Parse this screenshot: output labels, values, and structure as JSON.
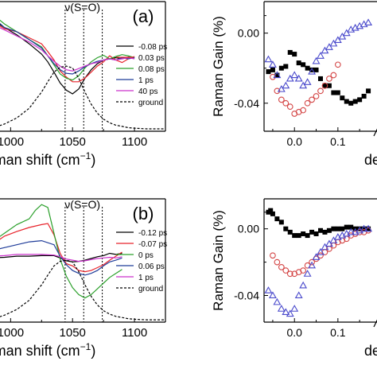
{
  "chart_data": [
    {
      "panel": "top-left",
      "type": "line",
      "panel_label": "(a)",
      "annotation": "ν(S=O)",
      "xlabel": "Raman shift (cm",
      "xlabel_sup": "−1",
      "xlabel_close": ")",
      "xticks": [
        1000,
        1050,
        1100
      ],
      "xtick_labels": [
        "1000",
        "1050",
        "1100"
      ],
      "xlim": [
        985,
        1125
      ],
      "ylim": [
        -1.1,
        1.05
      ],
      "dashed_markers_x": [
        1044,
        1059,
        1074
      ],
      "legend_position": "right-center",
      "series": [
        {
          "name": "-0.08 ps",
          "color": "#000000",
          "dash": false,
          "x": [
            985,
            995,
            1005,
            1015,
            1025,
            1030,
            1035,
            1040,
            1045,
            1050,
            1055,
            1060,
            1065,
            1070,
            1075,
            1080,
            1085,
            1090,
            1095,
            1100
          ],
          "y": [
            0.75,
            0.62,
            0.5,
            0.35,
            0.18,
            0.05,
            -0.12,
            -0.3,
            -0.42,
            -0.48,
            -0.4,
            -0.22,
            -0.08,
            0.02,
            0.08,
            0.1,
            0.12,
            0.1,
            0.13,
            0.12
          ]
        },
        {
          "name": "0.03 ps",
          "color": "#e8232b",
          "dash": false,
          "x": [
            985,
            995,
            1005,
            1015,
            1025,
            1030,
            1035,
            1040,
            1045,
            1050,
            1055,
            1060,
            1065,
            1070,
            1075,
            1080,
            1085,
            1090,
            1095,
            1100
          ],
          "y": [
            0.72,
            0.6,
            0.55,
            0.45,
            0.35,
            0.22,
            0.08,
            -0.1,
            -0.2,
            -0.28,
            -0.28,
            -0.22,
            -0.12,
            -0.02,
            0.05,
            0.15,
            0.08,
            0.04,
            0.1,
            0.14
          ]
        },
        {
          "name": "0.08 ps",
          "color": "#2ca02c",
          "dash": false,
          "x": [
            985,
            995,
            1005,
            1015,
            1025,
            1030,
            1035,
            1040,
            1045,
            1050,
            1055,
            1060,
            1065,
            1070,
            1075,
            1080,
            1085,
            1090,
            1095,
            1100
          ],
          "y": [
            0.85,
            0.68,
            0.55,
            0.42,
            0.3,
            0.15,
            0.0,
            -0.15,
            -0.22,
            -0.25,
            -0.18,
            -0.05,
            0.05,
            0.12,
            0.16,
            0.1,
            0.14,
            0.17,
            0.15,
            0.12
          ]
        },
        {
          "name": "1 ps",
          "color": "#1f3c99",
          "dash": false,
          "x": [
            985,
            995,
            1005,
            1015,
            1025,
            1030,
            1035,
            1040,
            1045,
            1050,
            1055,
            1060,
            1065,
            1070,
            1075,
            1080,
            1085,
            1090,
            1095,
            1100
          ],
          "y": [
            0.8,
            0.62,
            0.55,
            0.42,
            0.28,
            0.15,
            0.02,
            -0.08,
            -0.14,
            -0.15,
            -0.1,
            -0.03,
            0.02,
            0.06,
            0.08,
            0.1,
            0.08,
            0.12,
            0.1,
            0.12
          ]
        },
        {
          "name": "40 ps",
          "color": "#cc33cc",
          "dash": false,
          "x": [
            985,
            995,
            1005,
            1015,
            1025,
            1030,
            1035,
            1040,
            1045,
            1050,
            1055,
            1060,
            1065,
            1070,
            1075,
            1080,
            1085,
            1090,
            1095,
            1100
          ],
          "y": [
            0.68,
            0.58,
            0.48,
            0.38,
            0.25,
            0.15,
            0.06,
            -0.02,
            -0.08,
            -0.1,
            -0.06,
            -0.02,
            0.02,
            0.04,
            0.08,
            0.1,
            0.08,
            0.1,
            0.12,
            0.1
          ]
        },
        {
          "name": "ground",
          "color": "#000000",
          "dash": true,
          "x": [
            985,
            995,
            1005,
            1015,
            1025,
            1030,
            1035,
            1040,
            1045,
            1050,
            1055,
            1060,
            1065,
            1070,
            1075,
            1080,
            1085,
            1090,
            1095,
            1100,
            1110,
            1125
          ],
          "y": [
            -1.05,
            -0.98,
            -0.88,
            -0.72,
            -0.45,
            -0.28,
            -0.12,
            -0.04,
            -0.02,
            -0.05,
            -0.22,
            -0.45,
            -0.65,
            -0.8,
            -0.9,
            -0.96,
            -1.0,
            -1.02,
            -1.04,
            -1.05,
            -1.06,
            -1.06
          ]
        }
      ]
    },
    {
      "panel": "bottom-left",
      "type": "line",
      "panel_label": "(b)",
      "annotation": "ν(S=O)",
      "xlabel": "Raman shift (cm",
      "xlabel_sup": "−1",
      "xlabel_close": ")",
      "xticks": [
        1000,
        1050,
        1100
      ],
      "xtick_labels": [
        "1000",
        "1050",
        "1100"
      ],
      "xlim": [
        985,
        1125
      ],
      "ylim": [
        -1.1,
        1.05
      ],
      "dashed_markers_x": [
        1044,
        1059,
        1074
      ],
      "legend_position": "right-center",
      "series": [
        {
          "name": "-0.12 ps",
          "color": "#000000",
          "dash": false,
          "x": [
            985,
            995,
            1005,
            1015,
            1025,
            1035,
            1040,
            1045,
            1050,
            1055,
            1060,
            1065,
            1070,
            1075,
            1080,
            1085,
            1090
          ],
          "y": [
            0.02,
            0.03,
            0.05,
            0.05,
            0.06,
            0.06,
            0.02,
            -0.03,
            -0.05,
            -0.04,
            -0.02,
            0.01,
            0.04,
            0.06,
            0.1,
            0.08,
            0.1
          ]
        },
        {
          "name": "-0.07 ps",
          "color": "#e8232b",
          "dash": false,
          "x": [
            985,
            995,
            1005,
            1015,
            1025,
            1030,
            1035,
            1040,
            1045,
            1050,
            1055,
            1060,
            1065,
            1070,
            1075,
            1080,
            1085,
            1090
          ],
          "y": [
            0.25,
            0.4,
            0.48,
            0.55,
            0.6,
            0.62,
            0.42,
            0.1,
            -0.08,
            -0.12,
            -0.2,
            -0.22,
            -0.2,
            -0.15,
            -0.1,
            -0.02,
            0.05,
            0.12
          ]
        },
        {
          "name": "0 ps",
          "color": "#2ca02c",
          "dash": false,
          "x": [
            985,
            995,
            1005,
            1015,
            1020,
            1025,
            1030,
            1035,
            1040,
            1045,
            1050,
            1055,
            1060,
            1065,
            1070,
            1075,
            1080,
            1085,
            1090
          ],
          "y": [
            0.3,
            0.45,
            0.6,
            0.7,
            0.85,
            0.95,
            0.9,
            0.45,
            0.0,
            -0.3,
            -0.5,
            -0.62,
            -0.68,
            -0.62,
            -0.52,
            -0.42,
            -0.32,
            -0.25,
            -0.18
          ]
        },
        {
          "name": "0.06 ps",
          "color": "#1f3c99",
          "dash": false,
          "x": [
            985,
            995,
            1005,
            1015,
            1025,
            1035,
            1040,
            1045,
            1050,
            1055,
            1060,
            1065,
            1070,
            1075,
            1080,
            1085,
            1090
          ],
          "y": [
            0.15,
            0.2,
            0.25,
            0.3,
            0.32,
            0.25,
            0.05,
            -0.1,
            -0.2,
            -0.25,
            -0.28,
            -0.25,
            -0.2,
            -0.12,
            -0.05,
            -0.02,
            0.02
          ]
        },
        {
          "name": "1 ps",
          "color": "#cc33cc",
          "dash": false,
          "x": [
            985,
            995,
            1005,
            1015,
            1025,
            1035,
            1040,
            1045,
            1050,
            1055,
            1060,
            1065,
            1070,
            1075,
            1080,
            1085,
            1090
          ],
          "y": [
            0.05,
            0.06,
            0.08,
            0.08,
            0.08,
            0.07,
            0.04,
            0.0,
            -0.02,
            -0.04,
            -0.03,
            -0.01,
            0.01,
            0.02,
            0.03,
            0.02,
            0.04
          ]
        },
        {
          "name": "ground",
          "color": "#000000",
          "dash": true,
          "x": [
            985,
            995,
            1005,
            1015,
            1025,
            1030,
            1035,
            1040,
            1045,
            1050,
            1055,
            1060,
            1065,
            1070,
            1075,
            1080,
            1085,
            1090,
            1095,
            1100,
            1110,
            1125
          ],
          "y": [
            -1.05,
            -0.98,
            -0.88,
            -0.72,
            -0.45,
            -0.28,
            -0.12,
            -0.04,
            -0.02,
            -0.05,
            -0.22,
            -0.45,
            -0.65,
            -0.8,
            -0.9,
            -0.96,
            -1.0,
            -1.02,
            -1.04,
            -1.05,
            -1.06,
            -1.06
          ]
        }
      ]
    },
    {
      "panel": "top-right",
      "type": "scatter",
      "ylabel": "Raman Gain (%)",
      "xlabel_partial": "de",
      "xticks": [
        0.0,
        0.1
      ],
      "xtick_labels": [
        "0.0",
        "0.1"
      ],
      "yticks": [
        0.0,
        -0.04
      ],
      "ytick_labels": [
        "0.00",
        "-0.04"
      ],
      "xlim": [
        -0.07,
        0.19
      ],
      "ylim": [
        -0.056,
        0.018
      ],
      "series": [
        {
          "marker": "square-filled",
          "color": "#000000",
          "x": [
            -0.06,
            -0.05,
            -0.04,
            -0.03,
            -0.02,
            -0.01,
            0.0,
            0.01,
            0.02,
            0.03,
            0.04,
            0.05,
            0.06,
            0.07,
            0.08,
            0.09,
            0.1,
            0.11,
            0.12,
            0.13,
            0.14,
            0.15,
            0.16,
            0.17
          ],
          "y": [
            -0.022,
            -0.021,
            -0.024,
            -0.02,
            -0.019,
            -0.011,
            -0.012,
            -0.017,
            -0.018,
            -0.02,
            -0.021,
            -0.021,
            -0.026,
            -0.03,
            -0.03,
            -0.034,
            -0.034,
            -0.037,
            -0.039,
            -0.04,
            -0.039,
            -0.038,
            -0.036,
            -0.033
          ]
        },
        {
          "marker": "circle-open",
          "color": "#d44646",
          "x": [
            -0.05,
            -0.04,
            -0.03,
            -0.02,
            -0.01,
            0.0,
            0.01,
            0.02,
            0.03,
            0.04,
            0.05,
            0.06,
            0.07,
            0.08,
            0.09,
            0.1
          ],
          "y": [
            -0.025,
            -0.033,
            -0.038,
            -0.04,
            -0.042,
            -0.046,
            -0.045,
            -0.044,
            -0.04,
            -0.038,
            -0.036,
            -0.033,
            -0.03,
            -0.026,
            -0.024,
            -0.018
          ]
        },
        {
          "marker": "triangle-open",
          "color": "#4a4acc",
          "x": [
            -0.06,
            -0.05,
            -0.04,
            -0.03,
            -0.02,
            -0.01,
            0.0,
            0.01,
            0.02,
            0.03,
            0.04,
            0.05,
            0.06,
            0.07,
            0.08,
            0.09,
            0.1,
            0.11,
            0.12,
            0.13,
            0.14,
            0.15,
            0.16,
            0.17
          ],
          "y": [
            -0.015,
            -0.018,
            -0.024,
            -0.032,
            -0.03,
            -0.026,
            -0.024,
            -0.026,
            -0.03,
            -0.028,
            -0.022,
            -0.016,
            -0.013,
            -0.01,
            -0.008,
            -0.006,
            -0.004,
            -0.002,
            0.0,
            0.002,
            0.003,
            0.004,
            0.005,
            0.006
          ]
        }
      ]
    },
    {
      "panel": "bottom-right",
      "type": "scatter",
      "ylabel": "Raman Gain (%)",
      "xlabel_partial": "de",
      "xticks": [
        0.0,
        0.1
      ],
      "xtick_labels": [
        "0.0",
        "0.1"
      ],
      "yticks": [
        0.0,
        -0.04
      ],
      "ytick_labels": [
        "0.00",
        "-0.04"
      ],
      "xlim": [
        -0.07,
        0.19
      ],
      "ylim": [
        -0.056,
        0.018
      ],
      "series": [
        {
          "marker": "square-filled",
          "color": "#000000",
          "x": [
            -0.06,
            -0.055,
            -0.05,
            -0.04,
            -0.03,
            -0.02,
            -0.01,
            0.0,
            0.01,
            0.02,
            0.03,
            0.04,
            0.05,
            0.06,
            0.07,
            0.08,
            0.09,
            0.1,
            0.11,
            0.12,
            0.13,
            0.14,
            0.15,
            0.16,
            0.17
          ],
          "y": [
            0.01,
            0.011,
            0.009,
            0.006,
            0.004,
            0.0,
            -0.002,
            -0.004,
            -0.004,
            -0.003,
            -0.004,
            -0.002,
            -0.003,
            -0.001,
            -0.002,
            -0.001,
            0.0,
            0.0,
            0.0,
            0.001,
            0.001,
            0.0,
            0.0,
            0.0,
            0.0
          ]
        },
        {
          "marker": "circle-open",
          "color": "#d44646",
          "x": [
            -0.05,
            -0.04,
            -0.03,
            -0.02,
            -0.01,
            0.0,
            0.01,
            0.02,
            0.03,
            0.04,
            0.05,
            0.06,
            0.07,
            0.08,
            0.09,
            0.1,
            0.11,
            0.12,
            0.13,
            0.14,
            0.15,
            0.16,
            0.17
          ],
          "y": [
            -0.016,
            -0.02,
            -0.023,
            -0.025,
            -0.027,
            -0.027,
            -0.026,
            -0.025,
            -0.022,
            -0.02,
            -0.018,
            -0.016,
            -0.014,
            -0.012,
            -0.01,
            -0.008,
            -0.007,
            -0.006,
            -0.004,
            -0.003,
            -0.002,
            -0.002,
            -0.001
          ]
        },
        {
          "marker": "triangle-open",
          "color": "#4a4acc",
          "x": [
            -0.06,
            -0.05,
            -0.04,
            -0.03,
            -0.02,
            -0.01,
            0.0,
            0.01,
            0.02,
            0.03,
            0.04,
            0.05,
            0.06,
            0.07,
            0.08,
            0.09,
            0.1,
            0.11,
            0.12,
            0.13,
            0.14,
            0.15,
            0.16,
            0.17
          ],
          "y": [
            -0.037,
            -0.04,
            -0.044,
            -0.048,
            -0.05,
            -0.051,
            -0.048,
            -0.04,
            -0.034,
            -0.027,
            -0.022,
            -0.017,
            -0.014,
            -0.011,
            -0.009,
            -0.007,
            -0.005,
            -0.004,
            -0.003,
            -0.002,
            -0.002,
            -0.001,
            0.0,
            0.0
          ]
        }
      ]
    }
  ]
}
